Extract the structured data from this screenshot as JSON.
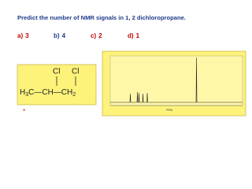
{
  "question": "Predict the number of NMR signals in 1, 2 dichloropropane.",
  "options": [
    {
      "label": "a)",
      "text": "3"
    },
    {
      "label": "b)",
      "text": "4"
    },
    {
      "label": "c)",
      "text": "2"
    },
    {
      "label": "d)",
      "text": "1"
    }
  ],
  "molecule": {
    "cl_left": "Cl",
    "cl_right": "Cl",
    "formula": [
      "H",
      "3",
      "C—CH—CH",
      "2"
    ]
  },
  "marker": "*",
  "spectrum": {
    "axis_label": "PPM"
  }
}
